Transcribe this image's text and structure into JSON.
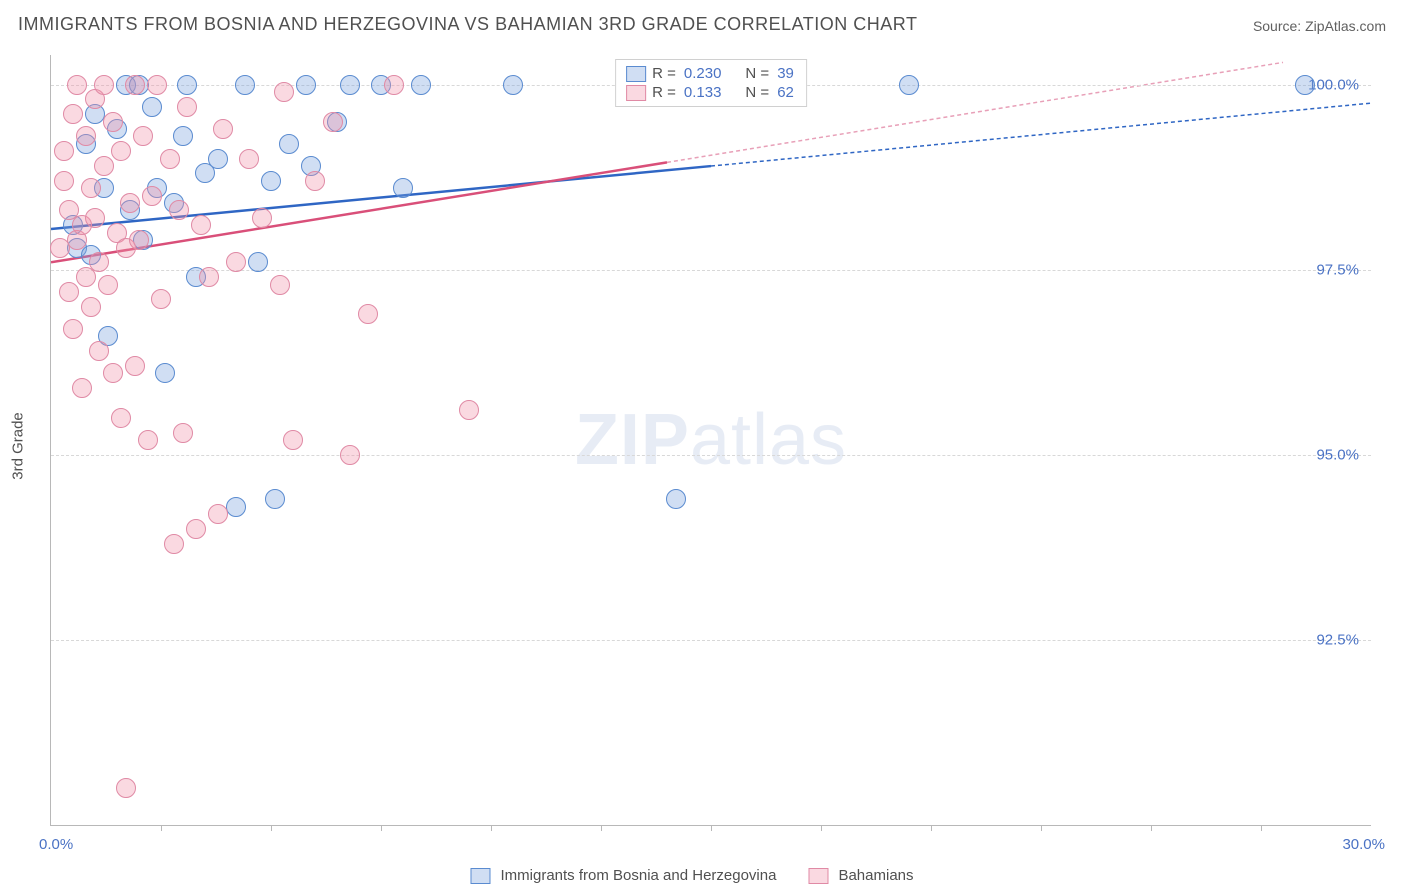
{
  "title": "IMMIGRANTS FROM BOSNIA AND HERZEGOVINA VS BAHAMIAN 3RD GRADE CORRELATION CHART",
  "source": "Source: ZipAtlas.com",
  "ylabel": "3rd Grade",
  "watermark_a": "ZIP",
  "watermark_b": "atlas",
  "chart": {
    "type": "scatter",
    "xlim": [
      0.0,
      30.0
    ],
    "ylim": [
      90.0,
      100.4
    ],
    "x_axis_min_label": "0.0%",
    "x_axis_max_label": "30.0%",
    "x_tick_positions": [
      2.5,
      5.0,
      7.5,
      10.0,
      12.5,
      15.0,
      17.5,
      20.0,
      22.5,
      25.0,
      27.5
    ],
    "y_ticks": [
      {
        "value": 92.5,
        "label": "92.5%"
      },
      {
        "value": 95.0,
        "label": "95.0%"
      },
      {
        "value": 97.5,
        "label": "97.5%"
      },
      {
        "value": 100.0,
        "label": "100.0%"
      }
    ],
    "marker_radius": 9,
    "grid_color": "#d8d8d8",
    "axis_color": "#b8b8b8",
    "tick_label_color": "#4a72c4",
    "background": "#ffffff",
    "series": [
      {
        "name": "Immigrants from Bosnia and Herzegovina",
        "fill": "rgba(120,160,220,0.35)",
        "stroke": "#5a8bd0",
        "trend_color": "#2f66c4",
        "trend_dash_color": "#2f66c4",
        "R": "0.230",
        "N": "39",
        "trend": {
          "x1": 0.0,
          "y1": 98.05,
          "x2_solid": 15.0,
          "y2_solid": 98.9,
          "x2": 30.0,
          "y2": 99.75
        },
        "points": [
          [
            0.5,
            98.1
          ],
          [
            0.6,
            97.8
          ],
          [
            0.8,
            99.2
          ],
          [
            0.9,
            97.7
          ],
          [
            1.0,
            99.6
          ],
          [
            1.2,
            98.6
          ],
          [
            1.3,
            96.6
          ],
          [
            1.5,
            99.4
          ],
          [
            1.7,
            100.0
          ],
          [
            1.8,
            98.3
          ],
          [
            2.0,
            100.0
          ],
          [
            2.1,
            97.9
          ],
          [
            2.3,
            99.7
          ],
          [
            2.4,
            98.6
          ],
          [
            2.6,
            96.1
          ],
          [
            2.8,
            98.4
          ],
          [
            3.0,
            99.3
          ],
          [
            3.1,
            100.0
          ],
          [
            3.3,
            97.4
          ],
          [
            3.5,
            98.8
          ],
          [
            3.8,
            99.0
          ],
          [
            4.2,
            94.3
          ],
          [
            4.4,
            100.0
          ],
          [
            4.7,
            97.6
          ],
          [
            5.0,
            98.7
          ],
          [
            5.1,
            94.4
          ],
          [
            5.4,
            99.2
          ],
          [
            5.8,
            100.0
          ],
          [
            5.9,
            98.9
          ],
          [
            6.5,
            99.5
          ],
          [
            6.8,
            100.0
          ],
          [
            7.5,
            100.0
          ],
          [
            8.0,
            98.6
          ],
          [
            8.4,
            100.0
          ],
          [
            10.5,
            100.0
          ],
          [
            14.2,
            94.4
          ],
          [
            19.5,
            100.0
          ],
          [
            28.5,
            100.0
          ]
        ]
      },
      {
        "name": "Bahamians",
        "fill": "rgba(240,145,170,0.35)",
        "stroke": "#e08aa5",
        "trend_color": "#d94f79",
        "trend_dash_color": "#e8a0b8",
        "R": "0.133",
        "N": "62",
        "trend": {
          "x1": 0.0,
          "y1": 97.6,
          "x2_solid": 14.0,
          "y2_solid": 98.95,
          "x2": 28.0,
          "y2": 100.3
        },
        "points": [
          [
            0.2,
            97.8
          ],
          [
            0.3,
            98.7
          ],
          [
            0.3,
            99.1
          ],
          [
            0.4,
            97.2
          ],
          [
            0.4,
            98.3
          ],
          [
            0.5,
            99.6
          ],
          [
            0.5,
            96.7
          ],
          [
            0.6,
            97.9
          ],
          [
            0.6,
            100.0
          ],
          [
            0.7,
            98.1
          ],
          [
            0.7,
            95.9
          ],
          [
            0.8,
            97.4
          ],
          [
            0.8,
            99.3
          ],
          [
            0.9,
            98.6
          ],
          [
            0.9,
            97.0
          ],
          [
            1.0,
            99.8
          ],
          [
            1.0,
            98.2
          ],
          [
            1.1,
            97.6
          ],
          [
            1.1,
            96.4
          ],
          [
            1.2,
            100.0
          ],
          [
            1.2,
            98.9
          ],
          [
            1.3,
            97.3
          ],
          [
            1.4,
            99.5
          ],
          [
            1.4,
            96.1
          ],
          [
            1.5,
            98.0
          ],
          [
            1.6,
            95.5
          ],
          [
            1.6,
            99.1
          ],
          [
            1.7,
            97.8
          ],
          [
            1.7,
            90.5
          ],
          [
            1.8,
            98.4
          ],
          [
            1.9,
            96.2
          ],
          [
            1.9,
            100.0
          ],
          [
            2.0,
            97.9
          ],
          [
            2.1,
            99.3
          ],
          [
            2.2,
            95.2
          ],
          [
            2.3,
            98.5
          ],
          [
            2.4,
            100.0
          ],
          [
            2.5,
            97.1
          ],
          [
            2.7,
            99.0
          ],
          [
            2.8,
            93.8
          ],
          [
            2.9,
            98.3
          ],
          [
            3.0,
            95.3
          ],
          [
            3.1,
            99.7
          ],
          [
            3.3,
            94.0
          ],
          [
            3.4,
            98.1
          ],
          [
            3.6,
            97.4
          ],
          [
            3.8,
            94.2
          ],
          [
            3.9,
            99.4
          ],
          [
            4.2,
            97.6
          ],
          [
            4.5,
            99.0
          ],
          [
            4.8,
            98.2
          ],
          [
            5.2,
            97.3
          ],
          [
            5.3,
            99.9
          ],
          [
            5.5,
            95.2
          ],
          [
            6.0,
            98.7
          ],
          [
            6.4,
            99.5
          ],
          [
            6.8,
            95.0
          ],
          [
            7.2,
            96.9
          ],
          [
            7.8,
            100.0
          ],
          [
            9.5,
            95.6
          ]
        ]
      }
    ]
  },
  "legend": {
    "r_label": "R =",
    "n_label": "N ="
  }
}
